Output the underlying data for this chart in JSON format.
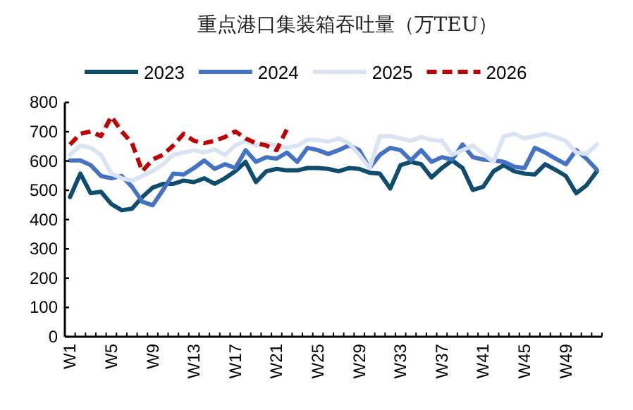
{
  "chart_data": {
    "type": "line",
    "title": "重点港口集装箱吞吐量（万TEU）",
    "categories": [
      "W1",
      null,
      null,
      null,
      "W5",
      null,
      null,
      null,
      "W9",
      null,
      null,
      null,
      "W13",
      null,
      null,
      null,
      "W17",
      null,
      null,
      null,
      "W21",
      null,
      null,
      null,
      "W25",
      null,
      null,
      null,
      "W29",
      null,
      null,
      null,
      "W33",
      null,
      null,
      null,
      "W37",
      null,
      null,
      null,
      "W41",
      null,
      null,
      null,
      "W45",
      null,
      null,
      null,
      "W49",
      null,
      null,
      null
    ],
    "series": [
      {
        "name": "2023",
        "color": "#0e4d6e",
        "line_style": "solid",
        "values": [
          477,
          557,
          490,
          495,
          453,
          432,
          437,
          477,
          509,
          522,
          522,
          533,
          528,
          541,
          522,
          541,
          565,
          597,
          528,
          565,
          573,
          568,
          568,
          576,
          576,
          573,
          565,
          576,
          573,
          560,
          557,
          506,
          586,
          597,
          589,
          544,
          576,
          602,
          576,
          501,
          512,
          565,
          586,
          565,
          557,
          554,
          589,
          570,
          549,
          490,
          517,
          565
        ]
      },
      {
        "name": "2024",
        "color": "#4472c4",
        "line_style": "solid",
        "values": [
          602,
          602,
          586,
          549,
          541,
          549,
          512,
          461,
          449,
          501,
          557,
          554,
          576,
          602,
          573,
          589,
          576,
          637,
          597,
          613,
          608,
          629,
          597,
          645,
          637,
          624,
          637,
          653,
          637,
          576,
          621,
          645,
          637,
          602,
          637,
          597,
          613,
          605,
          656,
          613,
          605,
          602,
          597,
          581,
          576,
          645,
          629,
          608,
          589,
          637,
          608,
          570
        ]
      },
      {
        "name": "2025",
        "color": "#dae3f3",
        "line_style": "solid",
        "values": [
          621,
          653,
          645,
          621,
          557,
          541,
          533,
          549,
          565,
          589,
          621,
          629,
          637,
          629,
          640,
          621,
          653,
          669,
          653,
          661,
          653,
          645,
          653,
          672,
          672,
          666,
          677,
          661,
          621,
          576,
          685,
          685,
          677,
          669,
          682,
          672,
          669,
          621,
          637,
          653,
          624,
          597,
          685,
          693,
          677,
          685,
          693,
          682,
          669,
          629,
          624,
          656
        ]
      },
      {
        "name": "2026",
        "color": "#c00000",
        "line_style": "dashed",
        "values": [
          656,
          693,
          701,
          685,
          752,
          701,
          661,
          565,
          605,
          621,
          653,
          693,
          669,
          661,
          669,
          682,
          701,
          677,
          661,
          653,
          637,
          709,
          null,
          null,
          null,
          null,
          null,
          null,
          null,
          null,
          null,
          null,
          null,
          null,
          null,
          null,
          null,
          null,
          null,
          null,
          null,
          null,
          null,
          null,
          null,
          null,
          null,
          null,
          null,
          null,
          null,
          null
        ]
      }
    ],
    "ylim": [
      0,
      800
    ],
    "yticks": [
      0,
      100,
      200,
      300,
      400,
      500,
      600,
      700,
      800
    ],
    "grid": false,
    "legend": "top",
    "marker": "none"
  }
}
